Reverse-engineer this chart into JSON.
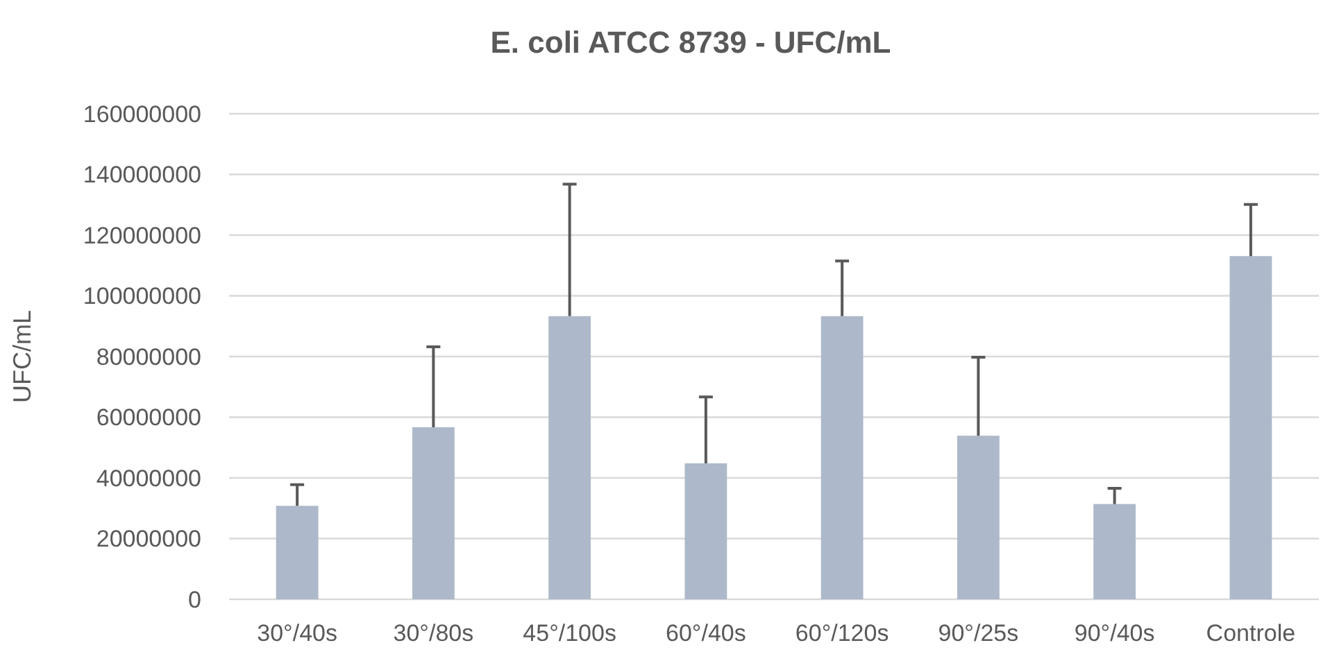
{
  "chart_data": {
    "type": "bar",
    "title": "E. coli ATCC 8739 - UFC/mL",
    "ylabel": "UFC/mL",
    "categories": [
      "30°/40s",
      "30°/80s",
      "45°/100s",
      "60°/40s",
      "60°/120s",
      "90°/25s",
      "90°/40s",
      "Controle"
    ],
    "values": [
      30800000,
      56700000,
      93300000,
      44800000,
      93300000,
      53900000,
      31400000,
      113100000
    ],
    "errors": [
      [
        30800000,
        37800000
      ],
      [
        56700000,
        83200000
      ],
      [
        93300000,
        136800000
      ],
      [
        44800000,
        66700000
      ],
      [
        93300000,
        111500000
      ],
      [
        53900000,
        79800000
      ],
      [
        31400000,
        36600000
      ],
      [
        113100000,
        130100000
      ]
    ],
    "color": "#adb9ca",
    "ylim": [
      0,
      160000000
    ],
    "yticks": [
      0,
      20000000,
      40000000,
      60000000,
      80000000,
      100000000,
      120000000,
      140000000,
      160000000
    ],
    "grid": "y"
  }
}
